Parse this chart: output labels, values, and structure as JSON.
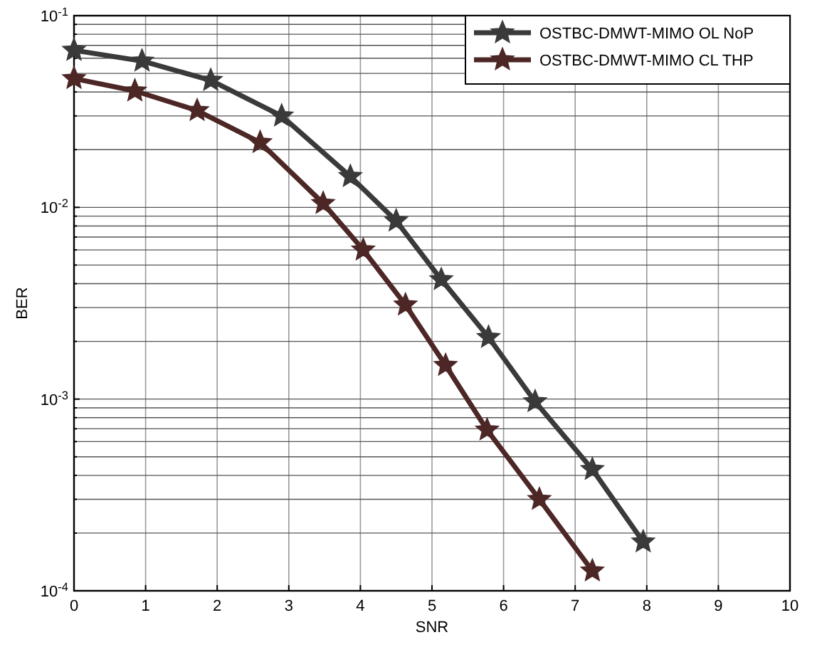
{
  "chart_data": {
    "type": "line",
    "xlabel": "SNR",
    "ylabel": "BER",
    "xlim": [
      0,
      10
    ],
    "xticks": [
      0,
      1,
      2,
      3,
      4,
      5,
      6,
      7,
      8,
      9,
      10
    ],
    "ylim": [
      0.0001,
      0.1
    ],
    "yticks": [
      {
        "value": 0.0001,
        "label": "10$^{-4}$"
      },
      {
        "value": 0.0002,
        "label": null
      },
      {
        "value": 0.0003,
        "label": null
      },
      {
        "value": 0.0004,
        "label": null
      },
      {
        "value": 0.0005,
        "label": null
      },
      {
        "value": 0.0006,
        "label": null
      },
      {
        "value": 0.0007,
        "label": null
      },
      {
        "value": 0.0008,
        "label": null
      },
      {
        "value": 0.0009,
        "label": null
      },
      {
        "value": 0.001,
        "label": "10$^{-3}$"
      },
      {
        "value": 0.002,
        "label": null
      },
      {
        "value": 0.003,
        "label": null
      },
      {
        "value": 0.004,
        "label": null
      },
      {
        "value": 0.005,
        "label": null
      },
      {
        "value": 0.006,
        "label": null
      },
      {
        "value": 0.007,
        "label": null
      },
      {
        "value": 0.008,
        "label": null
      },
      {
        "value": 0.009,
        "label": null
      },
      {
        "value": 0.01,
        "label": "10$^{-2}$"
      },
      {
        "value": 0.02,
        "label": null
      },
      {
        "value": 0.03,
        "label": null
      },
      {
        "value": 0.04,
        "label": null
      },
      {
        "value": 0.05,
        "label": null
      },
      {
        "value": 0.06,
        "label": null
      },
      {
        "value": 0.07,
        "label": null
      },
      {
        "value": 0.08,
        "label": null
      },
      {
        "value": 0.09,
        "label": null
      },
      {
        "value": 0.1,
        "label": "10$^{-1}$"
      }
    ],
    "log": true,
    "grid": true,
    "legend": "top right",
    "marker": "star",
    "line_style": "solid",
    "series": [
      {
        "name": "OSTBC-DMWT-MIMO OL NoP",
        "color": "#3a3a3a",
        "x": [
          0,
          0.95,
          1.91,
          2.9,
          3.86,
          4.5,
          5.13,
          5.79,
          6.44,
          7.24,
          7.95
        ],
        "values": [
          0.066,
          0.058,
          0.046,
          0.03,
          0.0145,
          0.0085,
          0.0042,
          0.0021,
          0.00097,
          0.00043,
          0.00018
        ]
      },
      {
        "name": "OSTBC-DMWT-MIMO CL THP",
        "color": "#4d2626",
        "x": [
          0,
          0.85,
          1.72,
          2.6,
          3.48,
          4.04,
          4.63,
          5.19,
          5.77,
          6.5,
          7.24
        ],
        "values": [
          0.047,
          0.0405,
          0.032,
          0.0218,
          0.0105,
          0.006,
          0.0031,
          0.0015,
          0.00069,
          0.0003,
          0.000127
        ]
      }
    ]
  }
}
